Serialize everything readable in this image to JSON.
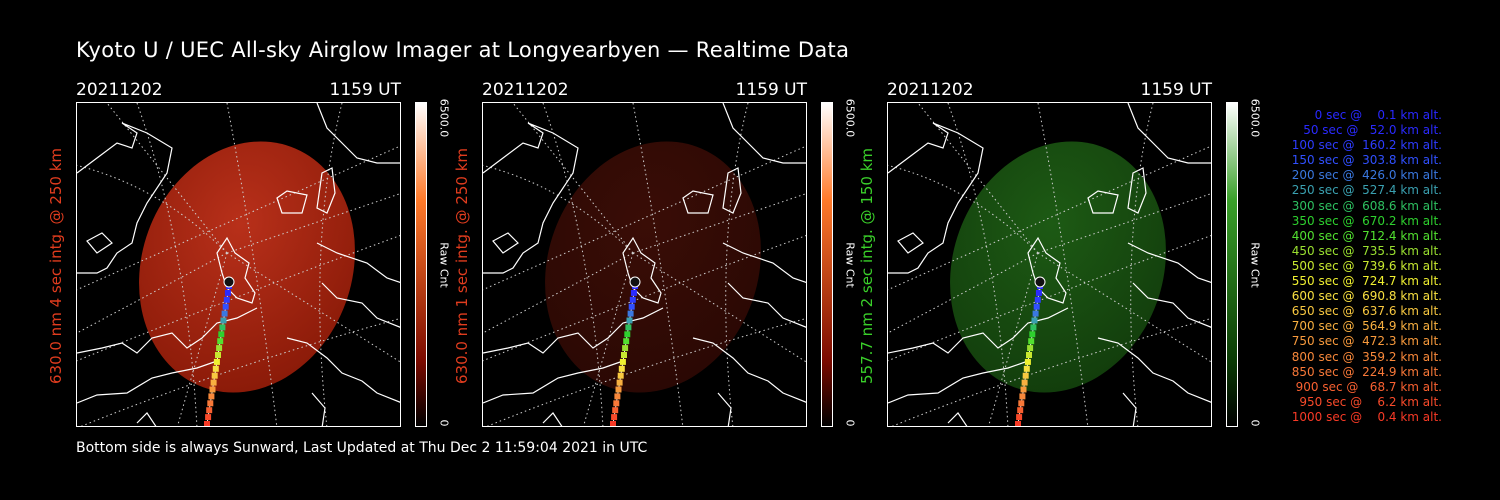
{
  "title": "Kyoto U / UEC All-sky Airglow Imager at Longyearbyen — Realtime Data",
  "footer": "Bottom side is always Sunward, Last Updated at Thu Dec  2 11:59:04 2021 in UTC",
  "panels": [
    {
      "date": "20211202",
      "time": "1159 UT",
      "label": "630.0 nm  4 sec intg. @ 250 km",
      "label_color": "#e03c1e",
      "cbar_max": "6500.0",
      "cbar_unit": "Raw Cnt",
      "cbar_min": "0",
      "cbar_top": "#ffffff",
      "cbar_mid": "#ff7a2a",
      "cbar_low": "#7a0a00",
      "glow_inner": "#b8301a",
      "glow_outer": "#8a1a08",
      "brightness": 0.9
    },
    {
      "date": "20211202",
      "time": "1159 UT",
      "label": "630.0 nm  1 sec intg. @ 250 km",
      "label_color": "#e03c1e",
      "cbar_max": "6500.0",
      "cbar_unit": "Raw Cnt",
      "cbar_min": "0",
      "cbar_top": "#ffffff",
      "cbar_mid": "#ff7a2a",
      "cbar_low": "#7a0a00",
      "glow_inner": "#3a0d06",
      "glow_outer": "#2a0804",
      "brightness": 0.35
    },
    {
      "date": "20211202",
      "time": "1159 UT",
      "label": "557.7 nm  2 sec intg. @ 150 km",
      "label_color": "#3ad02a",
      "cbar_max": "6500.0",
      "cbar_unit": "Raw Cnt",
      "cbar_min": "0",
      "cbar_top": "#ffffff",
      "cbar_mid": "#3aa02a",
      "cbar_low": "#0a3a04",
      "glow_inner": "#1d5a14",
      "glow_outer": "#123d0c",
      "brightness": 0.6
    }
  ],
  "legend": [
    {
      "text": "   0 sec @    0.1 km alt.",
      "color": "#2828ff"
    },
    {
      "text": "  50 sec @   52.0 km alt.",
      "color": "#2a2aff"
    },
    {
      "text": " 100 sec @  160.2 km alt.",
      "color": "#2d3cff"
    },
    {
      "text": " 150 sec @  303.8 km alt.",
      "color": "#3050ff"
    },
    {
      "text": " 200 sec @  426.0 km alt.",
      "color": "#3a78e0"
    },
    {
      "text": " 250 sec @  527.4 km alt.",
      "color": "#3aa0b0"
    },
    {
      "text": " 300 sec @  608.6 km alt.",
      "color": "#2ec060"
    },
    {
      "text": " 350 sec @  670.2 km alt.",
      "color": "#2ed02e"
    },
    {
      "text": " 400 sec @  712.4 km alt.",
      "color": "#52e030"
    },
    {
      "text": " 450 sec @  735.5 km alt.",
      "color": "#9ae030"
    },
    {
      "text": " 500 sec @  739.6 km alt.",
      "color": "#c8e830"
    },
    {
      "text": " 550 sec @  724.7 km alt.",
      "color": "#f0f030"
    },
    {
      "text": " 600 sec @  690.8 km alt.",
      "color": "#f8e040"
    },
    {
      "text": " 650 sec @  637.6 km alt.",
      "color": "#f8c840"
    },
    {
      "text": " 700 sec @  564.9 km alt.",
      "color": "#f8b040"
    },
    {
      "text": " 750 sec @  472.3 km alt.",
      "color": "#f89a3c"
    },
    {
      "text": " 800 sec @  359.2 km alt.",
      "color": "#f8883a"
    },
    {
      "text": " 850 sec @  224.9 km alt.",
      "color": "#f87838"
    },
    {
      "text": " 900 sec @   68.7 km alt.",
      "color": "#f86030"
    },
    {
      "text": " 950 sec @    6.2 km alt.",
      "color": "#f84a2a"
    },
    {
      "text": "1000 sec @    0.4 km alt.",
      "color": "#f83a26"
    }
  ]
}
